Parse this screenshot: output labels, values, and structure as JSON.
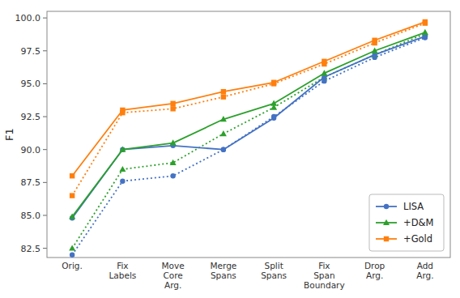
{
  "chart_data": {
    "type": "line",
    "y_label": "F1",
    "categories": [
      "Orig.",
      "Fix\nLabels",
      "Move\nCore\nArg.",
      "Merge\nSpans",
      "Split\nSpans",
      "Fix\nSpan\nBoundary",
      "Drop\nArg.",
      "Add\nArg."
    ],
    "series": [
      {
        "name": "LISA",
        "color": "#4472c4",
        "marker": "circle",
        "line_style": "solid",
        "values": [
          84.8,
          90.0,
          90.3,
          90.0,
          92.4,
          95.5,
          97.2,
          98.6
        ]
      },
      {
        "name": "+D&M",
        "color": "#2ca02c",
        "marker": "triangle",
        "line_style": "solid",
        "values": [
          84.9,
          90.0,
          90.5,
          92.3,
          93.5,
          95.8,
          97.5,
          98.9
        ]
      },
      {
        "name": "+Gold",
        "color": "#ff7f0e",
        "marker": "square",
        "line_style": "solid",
        "values": [
          88.0,
          93.0,
          93.5,
          94.4,
          95.1,
          96.7,
          98.3,
          99.7
        ]
      },
      {
        "color": "#4472c4",
        "marker": "circle",
        "line_style": "dotted",
        "values": [
          82.0,
          87.6,
          88.0,
          90.0,
          92.5,
          95.2,
          97.0,
          98.5
        ]
      },
      {
        "color": "#2ca02c",
        "marker": "triangle",
        "line_style": "dotted",
        "values": [
          82.5,
          88.5,
          89.0,
          91.2,
          93.2,
          95.5,
          97.2,
          98.8
        ]
      },
      {
        "color": "#ff7f0e",
        "marker": "square",
        "line_style": "dotted",
        "values": [
          86.5,
          92.8,
          93.1,
          94.0,
          95.0,
          96.5,
          98.1,
          99.6
        ]
      }
    ],
    "ylim": [
      81.8,
      100.5
    ],
    "yticks": [
      82.5,
      {
        "value": 85.0,
        "label": "85.0"
      },
      87.5,
      {
        "value": 90.0,
        "label": "90.0"
      },
      92.5,
      {
        "value": 95.0,
        "label": "95.0"
      },
      97.5,
      {
        "value": 100.0,
        "label": "100.0"
      }
    ],
    "grid": false,
    "legend": "lower right"
  }
}
